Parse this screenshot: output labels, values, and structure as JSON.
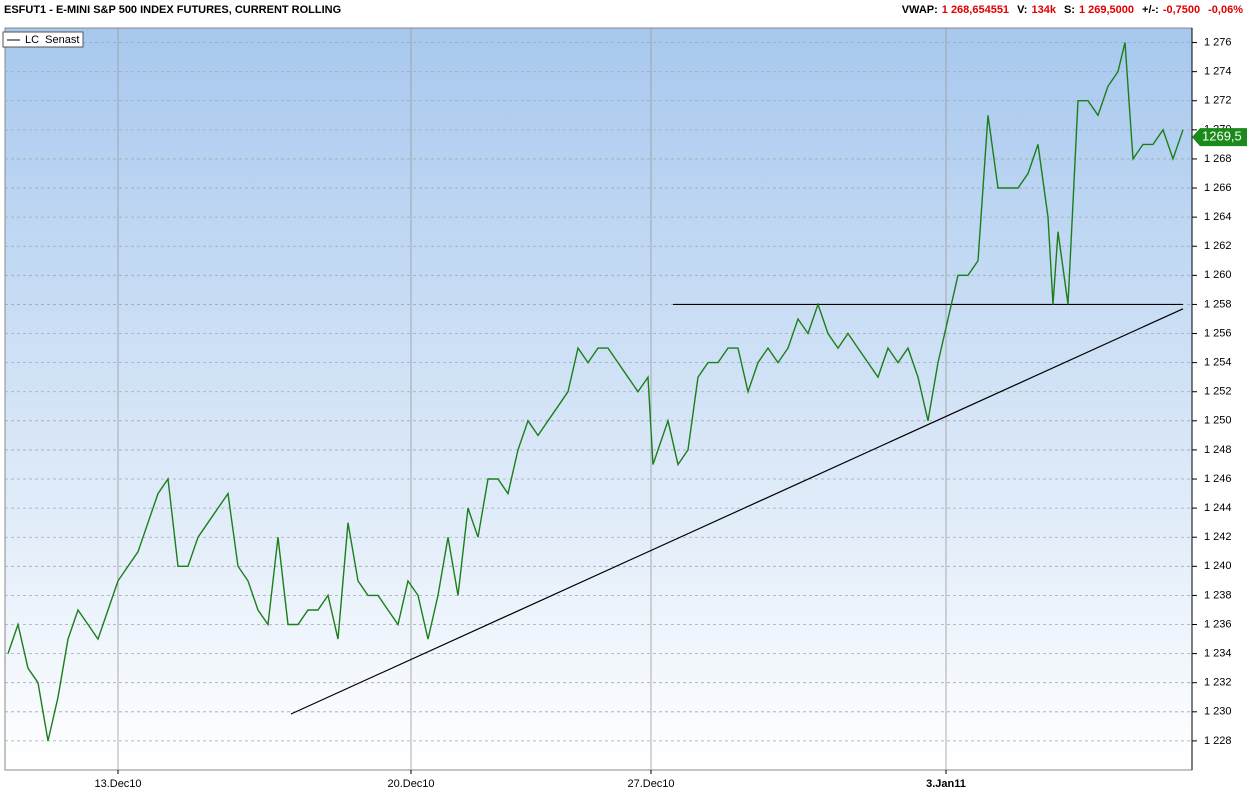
{
  "chart_data": {
    "type": "line",
    "title": "ESFUT1 - E-MINI S&P 500 INDEX FUTURES, CURRENT ROLLING",
    "stats": [
      {
        "label": "VWAP:",
        "value": "1 268,654551"
      },
      {
        "label": "V:",
        "value": "134k"
      },
      {
        "label": "S:",
        "value": "1 269,5000"
      },
      {
        "label": "+/-:",
        "value": "-0,7500"
      },
      {
        "value": "-0,06%"
      }
    ],
    "x": [
      0,
      1,
      2,
      3,
      4,
      5,
      6,
      7,
      8,
      9,
      10,
      11,
      12,
      13,
      14,
      15,
      16,
      17,
      18,
      19,
      20,
      21,
      22,
      23,
      24,
      25,
      26,
      27,
      28,
      29,
      30,
      31,
      32,
      33,
      34,
      35,
      36,
      37,
      38,
      39,
      40,
      41,
      42,
      43,
      44,
      45,
      46,
      47,
      48,
      49,
      50,
      51,
      52,
      53,
      54,
      55,
      56,
      57,
      58,
      59,
      60,
      61,
      62,
      63,
      64,
      64.5,
      65,
      66,
      67,
      68,
      69,
      70,
      71,
      72,
      73,
      74,
      75,
      76,
      77,
      78,
      79,
      80,
      81,
      82,
      83,
      84,
      85,
      86,
      87,
      88,
      89,
      90,
      91,
      92,
      93,
      94,
      95,
      96,
      97,
      98,
      99,
      100,
      101,
      102,
      103,
      104,
      104.5,
      105,
      106,
      107,
      108,
      109,
      110,
      111,
      111.7,
      112.5,
      113.5,
      114.5,
      115.5,
      116.5,
      117.5
    ],
    "series": [
      {
        "name": "LC  Senast",
        "color": "#1a7f1a",
        "values": [
          1234,
          1236,
          1233,
          1232,
          1228,
          1231,
          1235,
          1237,
          1236,
          1235,
          1237,
          1239,
          1240,
          1241,
          1243,
          1245,
          1246,
          1240,
          1240,
          1242,
          1243,
          1244,
          1245,
          1240,
          1239,
          1237,
          1236,
          1242,
          1236,
          1236,
          1237,
          1237,
          1238,
          1235,
          1243,
          1239,
          1238,
          1238,
          1237,
          1236,
          1239,
          1238,
          1235,
          1238,
          1242,
          1238,
          1244,
          1242,
          1246,
          1246,
          1245,
          1248,
          1250,
          1249,
          1250,
          1251,
          1252,
          1255,
          1254,
          1255,
          1255,
          1254,
          1253,
          1252,
          1253,
          1247,
          1248,
          1250,
          1247,
          1248,
          1253,
          1254,
          1254,
          1255,
          1255,
          1252,
          1254,
          1255,
          1254,
          1255,
          1257,
          1256,
          1258,
          1256,
          1255,
          1256,
          1255,
          1254,
          1253,
          1255,
          1254,
          1255,
          1253,
          1250,
          1254,
          1257,
          1260,
          1260,
          1261,
          1271,
          1266,
          1266,
          1266,
          1267,
          1269,
          1264,
          1258,
          1263,
          1258,
          1272,
          1272,
          1271,
          1273,
          1274,
          1276,
          1268,
          1269,
          1269,
          1270,
          1268,
          1270
        ]
      }
    ],
    "last_price": {
      "value": 1269.5,
      "label": "1269,5"
    },
    "trendlines": [
      {
        "x": [
          28.3,
          117.5
        ],
        "y": [
          1229.85,
          1257.7
        ],
        "color": "#000000"
      },
      {
        "x": [
          66.5,
          117.5
        ],
        "y": [
          1258,
          1258
        ],
        "color": "#000000"
      }
    ],
    "xlim": [
      -0.3,
      118.4
    ],
    "xticks": [
      {
        "value": 11,
        "label": "13.Dec10"
      },
      {
        "value": 40.3,
        "label": "20.Dec10"
      },
      {
        "value": 64.3,
        "label": "27.Dec10"
      },
      {
        "value": 93.8,
        "label": "3.Jan11"
      }
    ],
    "ylim": [
      1226,
      1277
    ],
    "yticks": [
      {
        "value": 1228,
        "label": "1 228"
      },
      {
        "value": 1230,
        "label": "1 230"
      },
      {
        "value": 1232,
        "label": "1 232"
      },
      {
        "value": 1234,
        "label": "1 234"
      },
      {
        "value": 1236,
        "label": "1 236"
      },
      {
        "value": 1238,
        "label": "1 238"
      },
      {
        "value": 1240,
        "label": "1 240"
      },
      {
        "value": 1242,
        "label": "1 242"
      },
      {
        "value": 1244,
        "label": "1 244"
      },
      {
        "value": 1246,
        "label": "1 246"
      },
      {
        "value": 1248,
        "label": "1 248"
      },
      {
        "value": 1250,
        "label": "1 250"
      },
      {
        "value": 1252,
        "label": "1 252"
      },
      {
        "value": 1254,
        "label": "1 254"
      },
      {
        "value": 1256,
        "label": "1 256"
      },
      {
        "value": 1258,
        "label": "1 258"
      },
      {
        "value": 1260,
        "label": "1 260"
      },
      {
        "value": 1262,
        "label": "1 262"
      },
      {
        "value": 1264,
        "label": "1 264"
      },
      {
        "value": 1266,
        "label": "1 266"
      },
      {
        "value": 1268,
        "label": "1 268"
      },
      {
        "value": 1270,
        "label": "1 270"
      },
      {
        "value": 1272,
        "label": "1 272"
      },
      {
        "value": 1274,
        "label": "1 274"
      },
      {
        "value": 1276,
        "label": "1 276"
      }
    ],
    "grid": true
  }
}
